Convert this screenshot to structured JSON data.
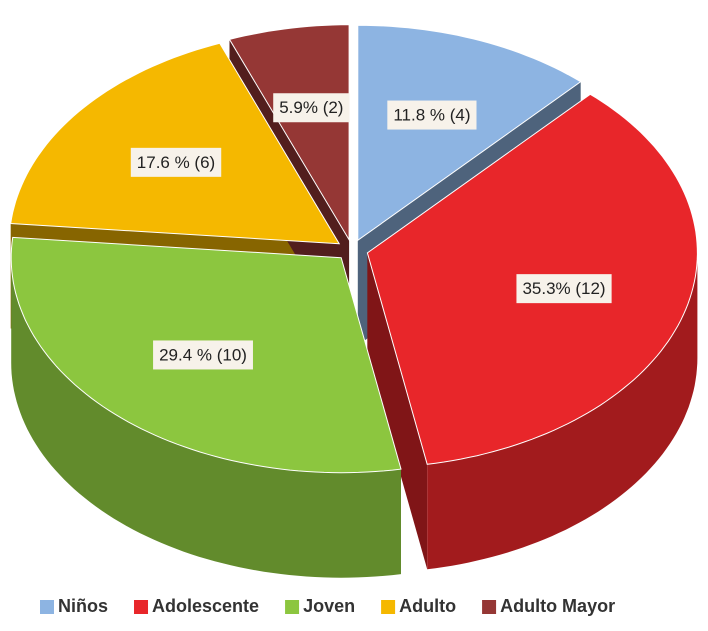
{
  "chart_data": {
    "type": "pie3d",
    "categories": [
      "Niños",
      "Adolescente",
      "Joven",
      "Adulto",
      "Adulto Mayor"
    ],
    "values": [
      11.8,
      35.3,
      29.4,
      17.6,
      5.9
    ],
    "value_labels": [
      "11.8 % (4)",
      "35.3% (12)",
      "29.4 % (10)",
      "17.6 % (6)",
      "5.9% (2)"
    ],
    "colors": [
      "#8db4e2",
      "#e8262a",
      "#8cc63f",
      "#f5b800",
      "#953735"
    ],
    "legend": "bottom"
  }
}
